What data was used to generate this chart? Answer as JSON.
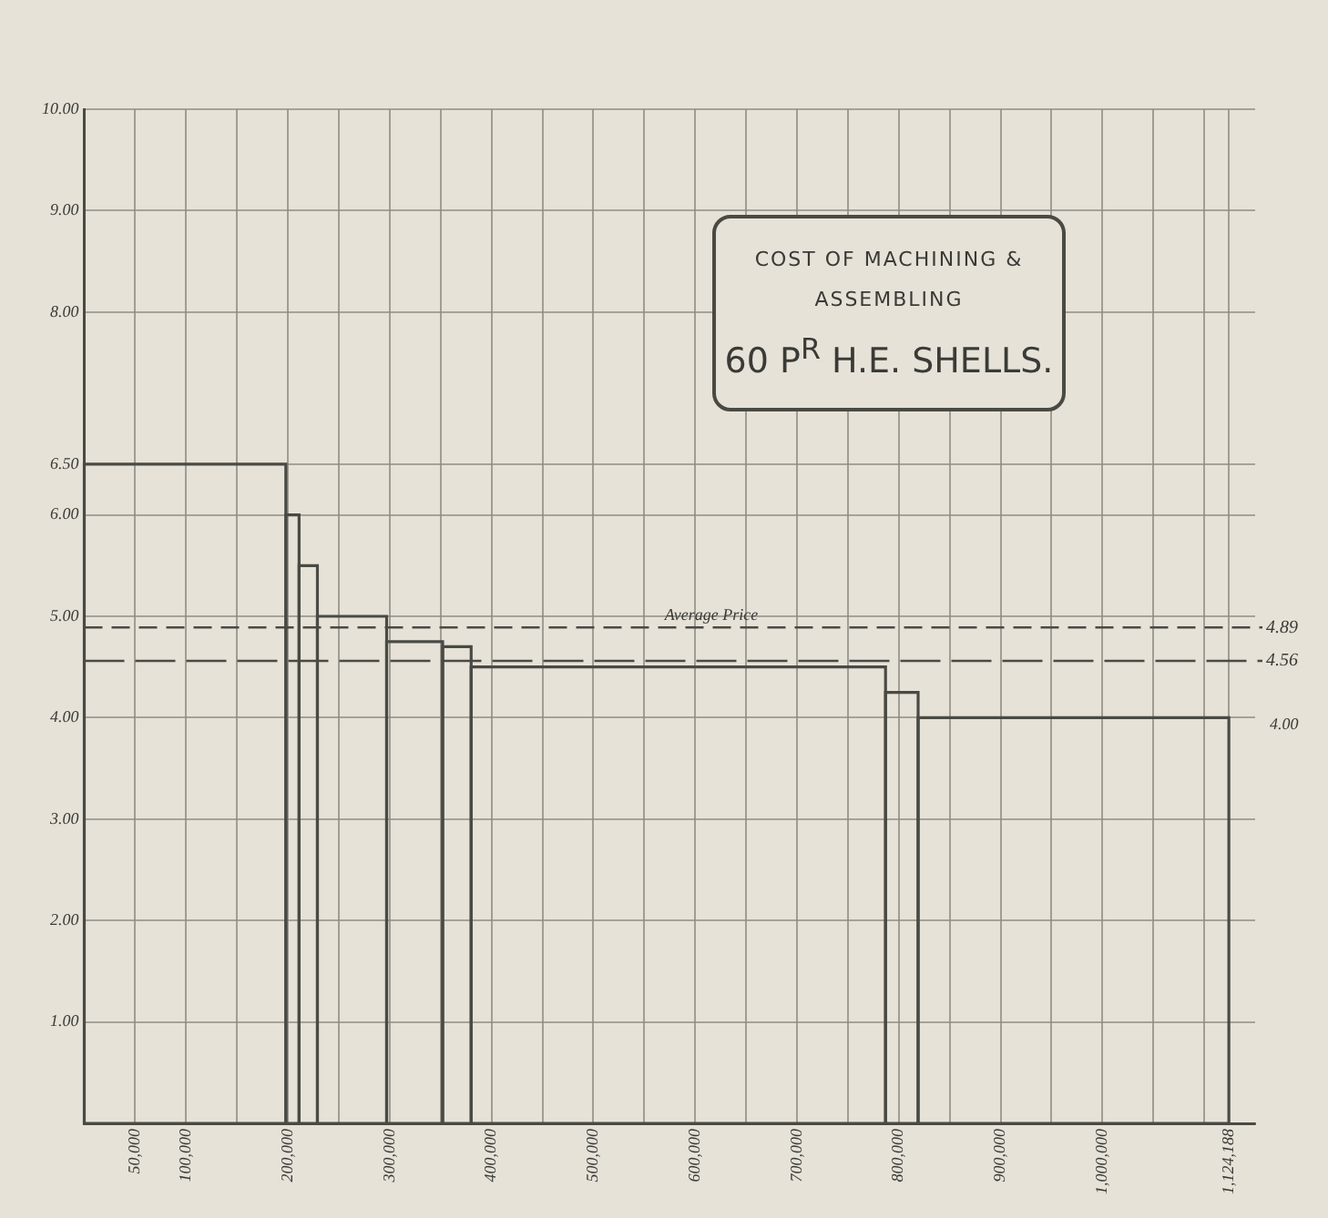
{
  "chart_data": {
    "type": "histogram",
    "title": "COST OF MACHINING & ASSEMBLING",
    "subtitle": "60 P$^{R}$ H.E. SHELLS.",
    "bins": [
      0,
      198000,
      211000,
      229000,
      297000,
      352000,
      380000,
      787000,
      819000,
      1124188
    ],
    "values": [
      6.5,
      6,
      5.5,
      5,
      4.75,
      4.7,
      4.5,
      4.25,
      4
    ],
    "color": "#4a4a44",
    "xlim": [
      0,
      1150000
    ],
    "xticks": [
      {
        "value": 50000,
        "label": "50,000"
      },
      {
        "value": 100000,
        "label": "100,000"
      },
      {
        "value": 150000,
        "label": null
      },
      {
        "value": 200000,
        "label": "200,000"
      },
      {
        "value": 250000,
        "label": null
      },
      {
        "value": 300000,
        "label": "300,000"
      },
      {
        "value": 350000,
        "label": null
      },
      {
        "value": 400000,
        "label": "400,000"
      },
      {
        "value": 450000,
        "label": null
      },
      {
        "value": 500000,
        "label": "500,000"
      },
      {
        "value": 550000,
        "label": null
      },
      {
        "value": 600000,
        "label": "600,000"
      },
      {
        "value": 650000,
        "label": null
      },
      {
        "value": 700000,
        "label": "700,000"
      },
      {
        "value": 750000,
        "label": null
      },
      {
        "value": 800000,
        "label": "800,000"
      },
      {
        "value": 850000,
        "label": null
      },
      {
        "value": 900000,
        "label": "900,000"
      },
      {
        "value": 950000,
        "label": null
      },
      {
        "value": 1000000,
        "label": "1,000,000"
      },
      {
        "value": 1050000,
        "label": null
      },
      {
        "value": 1100000,
        "label": null
      },
      {
        "value": 1124188,
        "label": "1,124,188"
      }
    ],
    "ylim": [
      0,
      10
    ],
    "yticks": [
      {
        "value": 1,
        "label": "1.00"
      },
      {
        "value": 2,
        "label": "2.00"
      },
      {
        "value": 3,
        "label": "3.00"
      },
      {
        "value": 4,
        "label": "4.00"
      },
      {
        "value": 5,
        "label": "5.00"
      },
      {
        "value": 6,
        "label": "6.00"
      },
      {
        "value": 6.5,
        "label": "6.50"
      },
      {
        "value": 8,
        "label": "8.00"
      },
      {
        "value": 9,
        "label": "9.00"
      },
      {
        "value": 10,
        "label": "10.00"
      }
    ],
    "grid": true,
    "ref_lines": [
      {
        "axis": "y",
        "value": 4.89,
        "label": "4.89",
        "line_style": "dashed",
        "color": "#4a4a44"
      },
      {
        "axis": "y",
        "value": 4.56,
        "label": "4.56",
        "line_style": "longdash",
        "color": "#4a4a44"
      }
    ],
    "annotations": [
      {
        "text": "Average Price",
        "x": 570000,
        "y": 4.89
      },
      "4.00"
    ]
  }
}
